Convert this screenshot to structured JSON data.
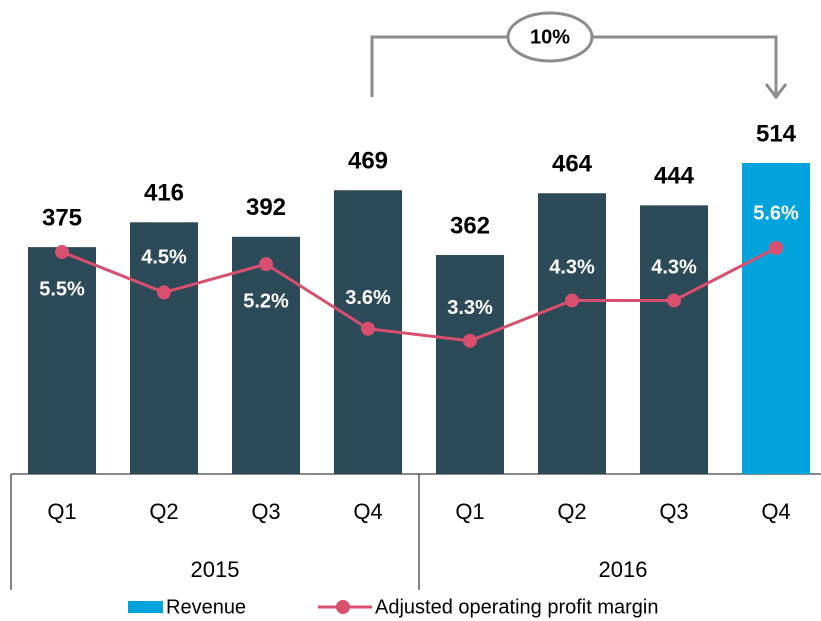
{
  "chart_data": {
    "type": "bar",
    "annotation": "10%",
    "categories": [
      "Q1",
      "Q2",
      "Q3",
      "Q4",
      "Q1",
      "Q2",
      "Q3",
      "Q4"
    ],
    "groups": [
      "2015",
      "2016"
    ],
    "series": [
      {
        "name": "Revenue",
        "type": "bar",
        "color": "#00a3dc",
        "colors": [
          "#2c4a58",
          "#2c4a58",
          "#2c4a58",
          "#2c4a58",
          "#2c4a58",
          "#2c4a58",
          "#2c4a58",
          "#00a3dc"
        ],
        "values": [
          375,
          416,
          392,
          469,
          362,
          464,
          444,
          514
        ]
      },
      {
        "name": "Adjusted operating profit margin",
        "type": "line",
        "color": "#d9506e",
        "values": [
          5.5,
          4.5,
          5.2,
          3.6,
          3.3,
          4.3,
          4.3,
          5.6
        ],
        "value_labels": [
          "5.5%",
          "4.5%",
          "5.2%",
          "3.6%",
          "3.3%",
          "4.3%",
          "4.3%",
          "5.6%"
        ]
      }
    ]
  }
}
